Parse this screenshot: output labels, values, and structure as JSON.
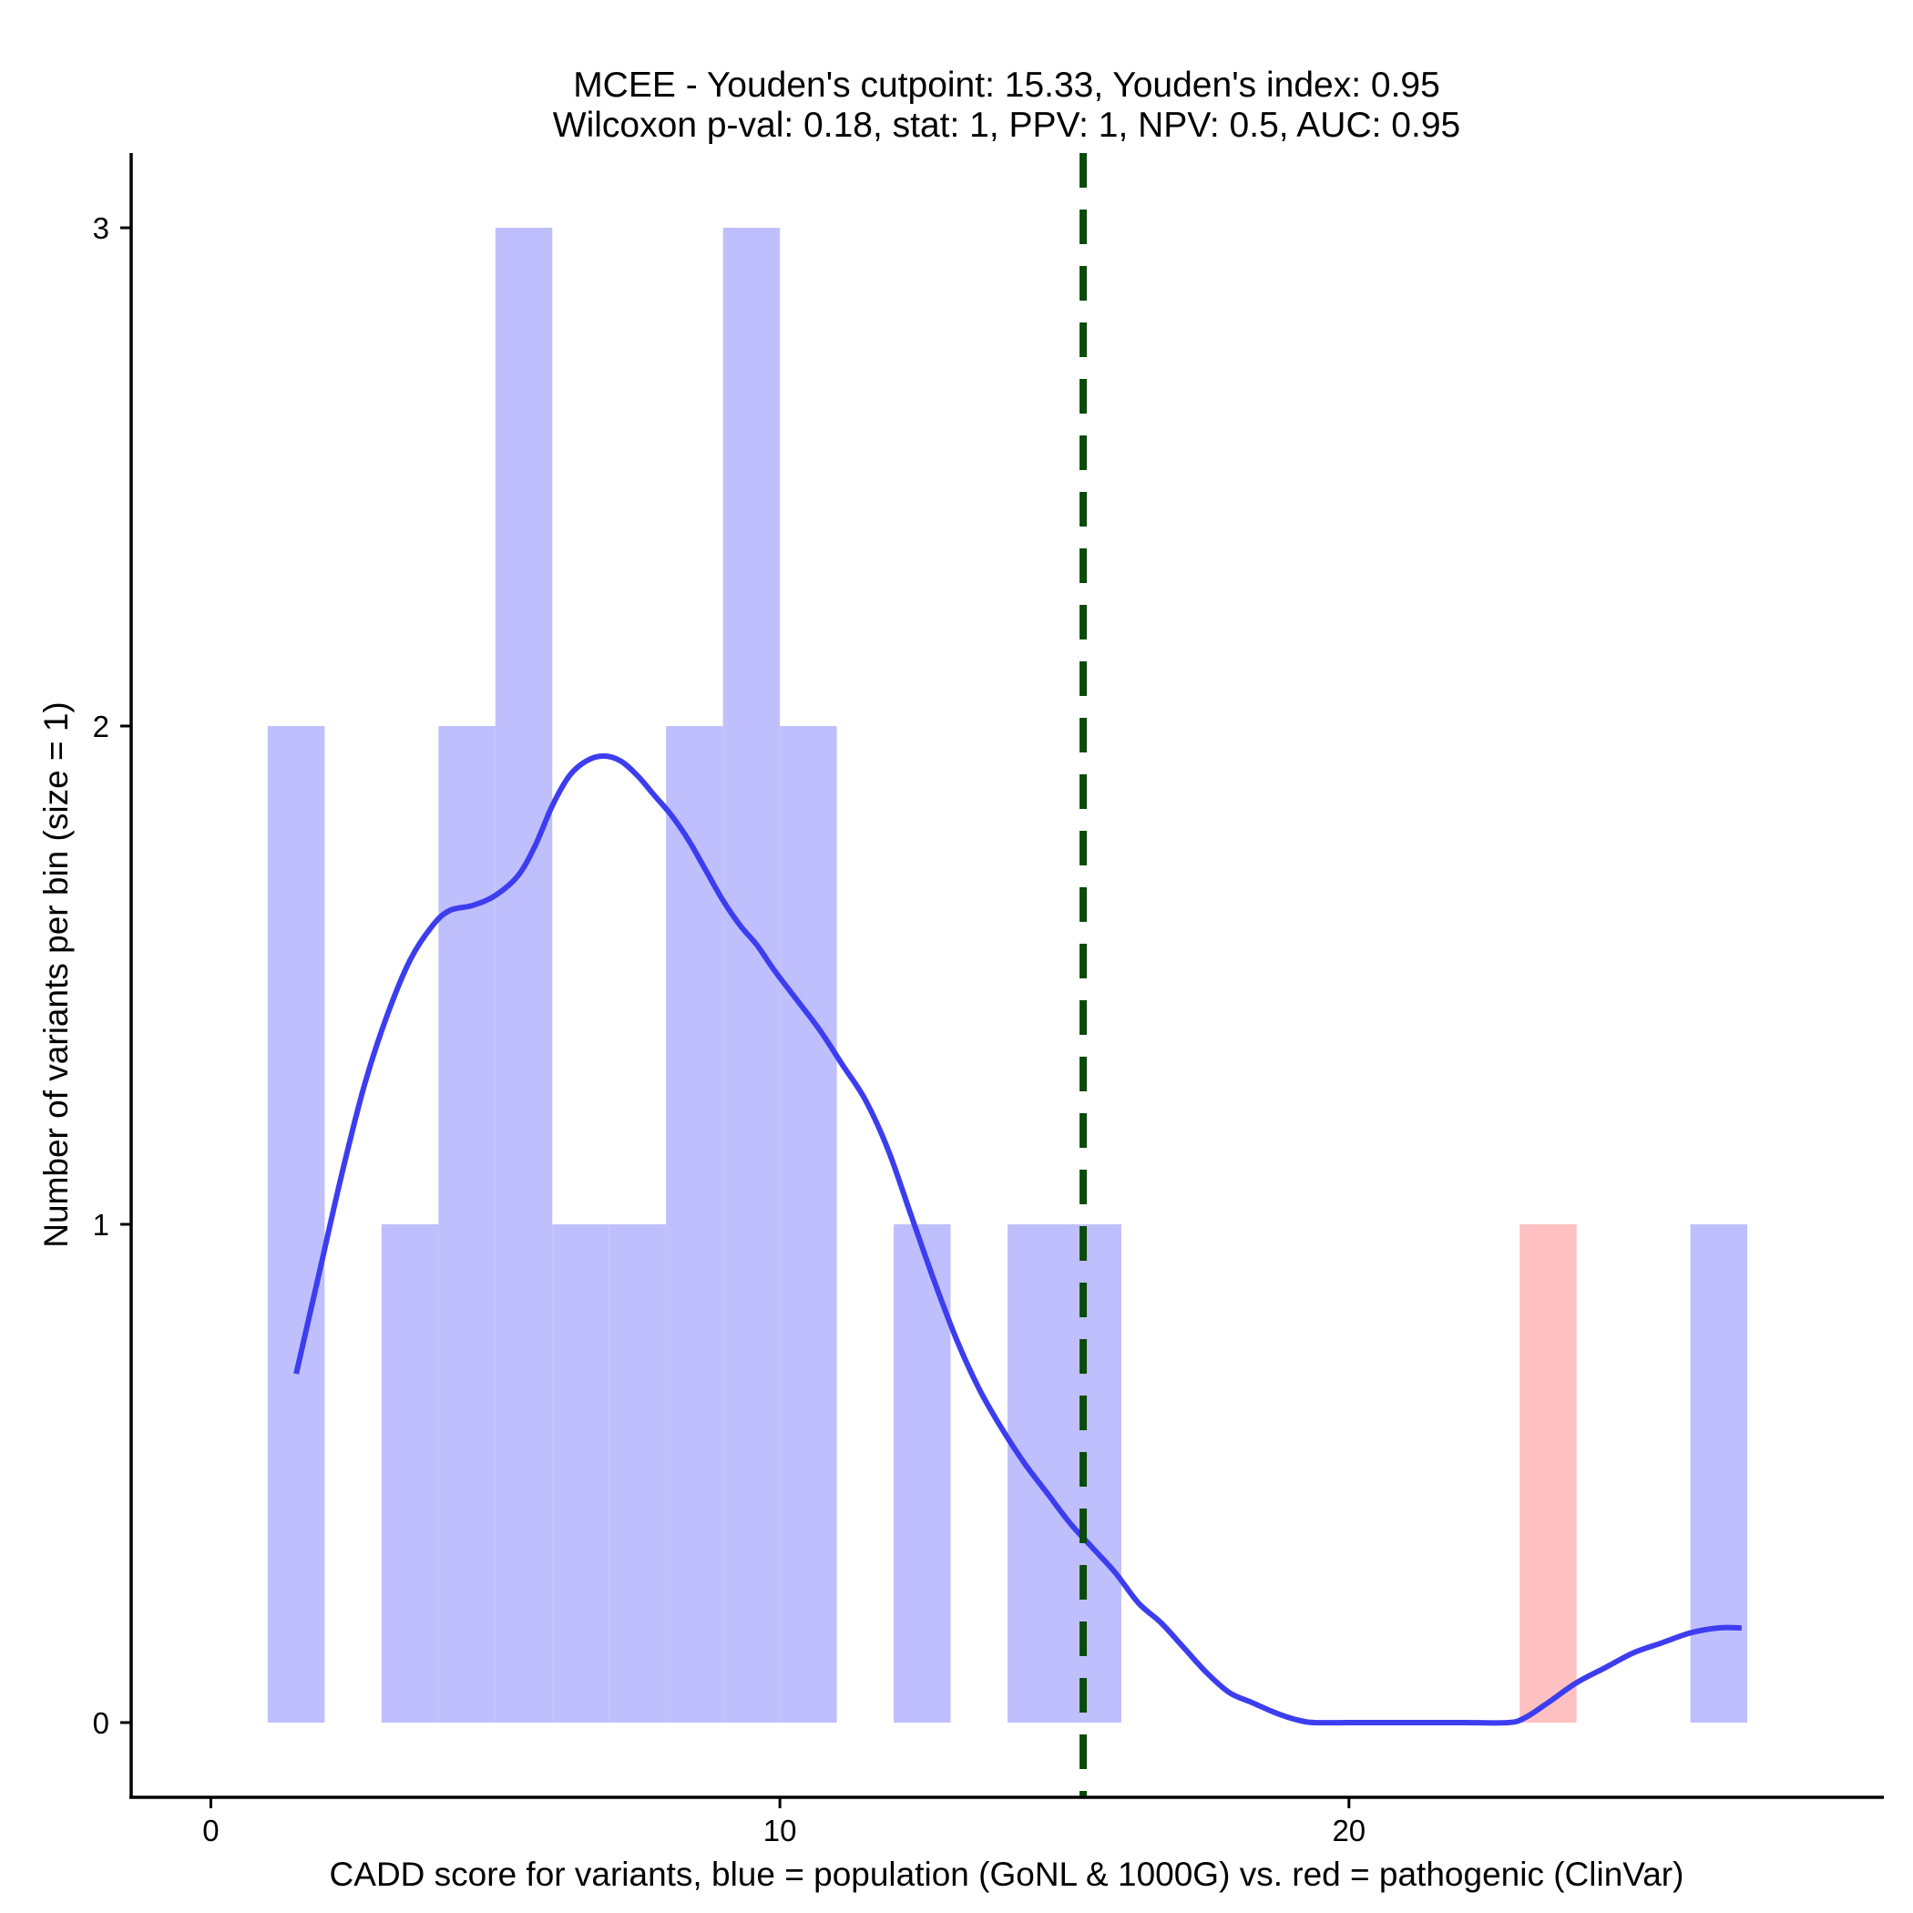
{
  "chart_data": {
    "type": "bar",
    "title_line1": "MCEE - Youden's cutpoint: 15.33, Youden's index: 0.95",
    "title_line2": "Wilcoxon p-val: 0.18, stat: 1, PPV: 1, NPV: 0.5, AUC: 0.95",
    "xlabel": "CADD score for variants, blue = population (GoNL & 1000G) vs. red = pathogenic (ClinVar)",
    "ylabel": "Number of variants per bin (size = 1)",
    "xlim": [
      -1.4,
      29.4
    ],
    "ylim": [
      -0.15,
      3.15
    ],
    "xticks": [
      0,
      10,
      20
    ],
    "yticks": [
      0,
      1,
      2,
      3
    ],
    "cutpoint": 15.33,
    "colors": {
      "population": "#bfbffd",
      "pathogenic": "#ffc0c1",
      "density": "#3d3df0",
      "cutpoint": "#0a4a0a"
    },
    "series": [
      {
        "name": "population",
        "bins": [
          {
            "start": 1,
            "end": 2,
            "count": 2
          },
          {
            "start": 3,
            "end": 4,
            "count": 1
          },
          {
            "start": 4,
            "end": 5,
            "count": 2
          },
          {
            "start": 5,
            "end": 6,
            "count": 3
          },
          {
            "start": 6,
            "end": 7,
            "count": 1
          },
          {
            "start": 7,
            "end": 8,
            "count": 1
          },
          {
            "start": 8,
            "end": 9,
            "count": 2
          },
          {
            "start": 9,
            "end": 10,
            "count": 3
          },
          {
            "start": 10,
            "end": 11,
            "count": 2
          },
          {
            "start": 12,
            "end": 13,
            "count": 1
          },
          {
            "start": 14,
            "end": 15,
            "count": 1
          },
          {
            "start": 15,
            "end": 16,
            "count": 1
          },
          {
            "start": 26,
            "end": 27,
            "count": 1
          }
        ]
      },
      {
        "name": "pathogenic",
        "bins": [
          {
            "start": 23,
            "end": 24,
            "count": 1
          }
        ]
      }
    ],
    "density_curve": {
      "name": "population density",
      "x": [
        1.5,
        1.9,
        2.3,
        2.7,
        3.1,
        3.5,
        3.9,
        4.2,
        4.6,
        5.0,
        5.4,
        5.7,
        6.0,
        6.3,
        6.6,
        6.9,
        7.2,
        7.5,
        7.8,
        8.1,
        8.4,
        8.7,
        9.0,
        9.3,
        9.6,
        9.9,
        10.3,
        10.7,
        11.1,
        11.5,
        11.9,
        12.3,
        12.7,
        13.1,
        13.5,
        13.9,
        14.3,
        14.7,
        15.1,
        15.5,
        15.9,
        16.3,
        16.7,
        17.1,
        17.5,
        17.9,
        18.3,
        18.7,
        19.1,
        19.4,
        20.0,
        21.0,
        22.0,
        22.8,
        23.1,
        23.5,
        24.0,
        24.5,
        25.0,
        25.5,
        26.0,
        26.5,
        26.9
      ],
      "y": [
        0.7,
        0.9,
        1.1,
        1.28,
        1.42,
        1.53,
        1.6,
        1.63,
        1.64,
        1.66,
        1.7,
        1.76,
        1.84,
        1.9,
        1.93,
        1.94,
        1.93,
        1.9,
        1.86,
        1.82,
        1.77,
        1.71,
        1.65,
        1.6,
        1.56,
        1.51,
        1.45,
        1.39,
        1.32,
        1.25,
        1.15,
        1.02,
        0.89,
        0.77,
        0.67,
        0.59,
        0.52,
        0.46,
        0.4,
        0.35,
        0.3,
        0.24,
        0.2,
        0.15,
        0.1,
        0.06,
        0.04,
        0.02,
        0.005,
        0.0,
        0.0,
        0.0,
        0.0,
        0.0,
        0.01,
        0.04,
        0.08,
        0.11,
        0.14,
        0.16,
        0.18,
        0.19,
        0.19
      ]
    }
  }
}
